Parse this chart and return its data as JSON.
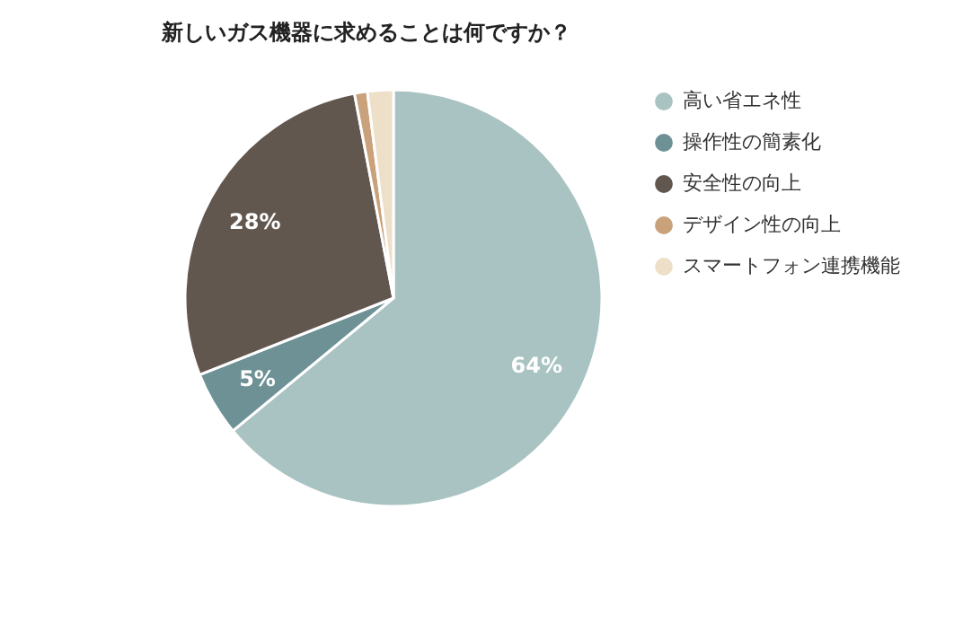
{
  "chart_data": {
    "type": "pie",
    "title": "新しいガス機器に求めることは何ですか？",
    "categories": [
      "高い省エネ性",
      "操作性の簡素化",
      "安全性の向上",
      "デザイン性の向上",
      "スマートフォン連携機能"
    ],
    "values": [
      64,
      5,
      28,
      1,
      2
    ],
    "value_labels": [
      "64%",
      "5%",
      "28%",
      null,
      null
    ],
    "colors": [
      "#a9c2c2",
      "#6e9196",
      "#62574f",
      "#c9a27b",
      "#eedfc8"
    ],
    "legend": "right"
  }
}
